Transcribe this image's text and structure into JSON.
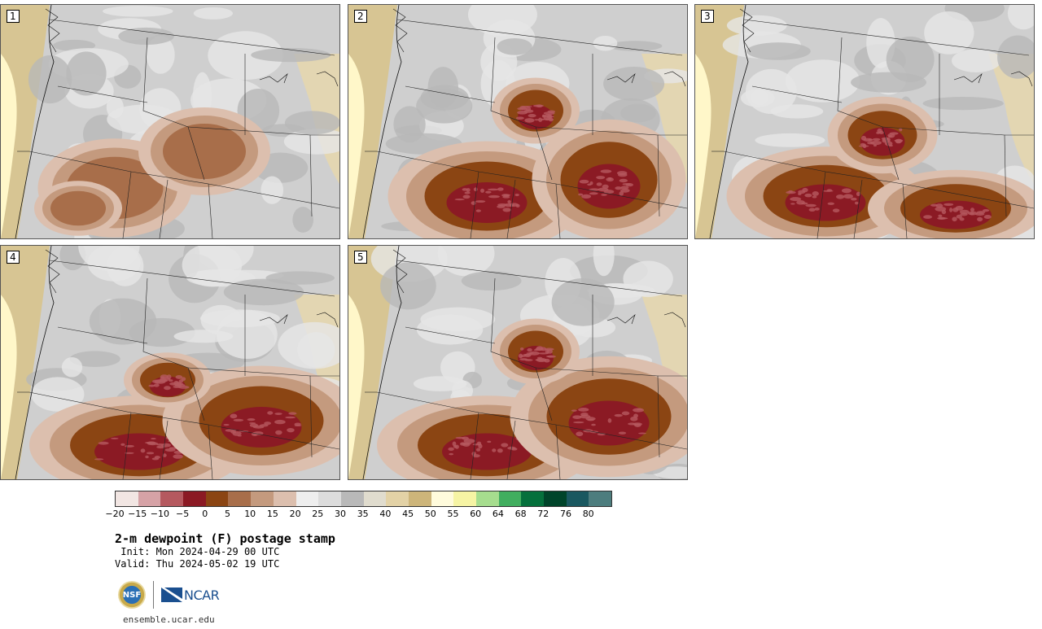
{
  "panels": [
    {
      "label": "1"
    },
    {
      "label": "2"
    },
    {
      "label": "3"
    },
    {
      "label": "4"
    },
    {
      "label": "5"
    }
  ],
  "colorbar": {
    "colors": [
      "#f2e6e3",
      "#d6a2a6",
      "#b5595f",
      "#8b1a24",
      "#8b4513",
      "#a86e4a",
      "#c49a7e",
      "#dcbfae",
      "#eeeeee",
      "#dcdcdc",
      "#b9b9b9",
      "#e0dcce",
      "#e3d2a6",
      "#cdb57a",
      "#fffbdc",
      "#f6f4a4",
      "#a6dd8e",
      "#41ae5f",
      "#05703c",
      "#00442a",
      "#1a5860",
      "#4d7d7e"
    ],
    "ticks": [
      "−20",
      "−15",
      "−10",
      "−5",
      "0",
      "5",
      "10",
      "15",
      "20",
      "25",
      "30",
      "35",
      "40",
      "45",
      "50",
      "55",
      "60",
      "64",
      "68",
      "72",
      "76",
      "80"
    ]
  },
  "title": "2-m dewpoint (F) postage stamp",
  "init": " Init: Mon 2024-04-29 00 UTC",
  "valid": "Valid: Thu 2024-05-02 19 UTC",
  "logos": {
    "nsf": "NSF",
    "ncar": "NCAR"
  },
  "url": "ensemble.ucar.edu"
}
